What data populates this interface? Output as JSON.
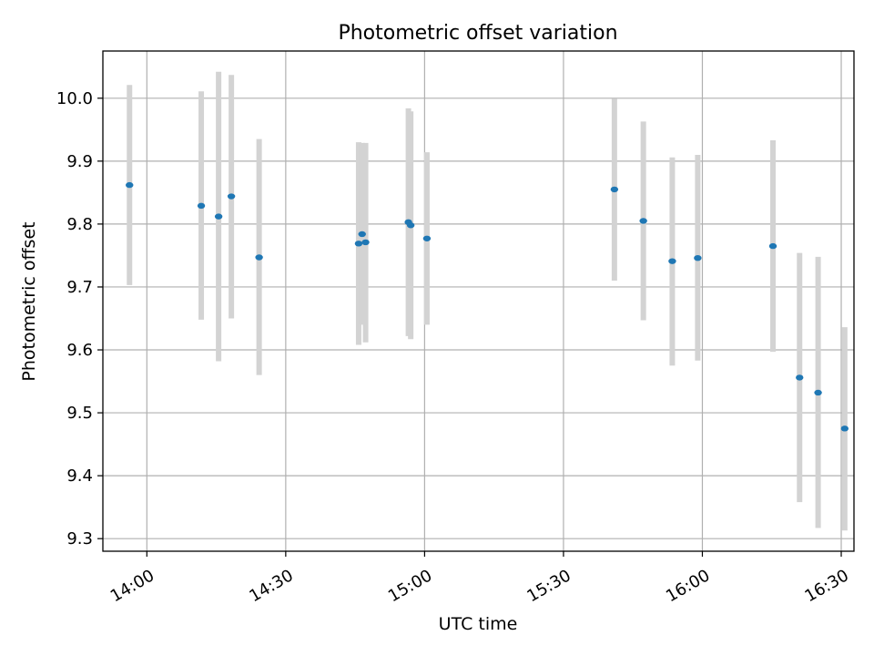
{
  "chart_data": {
    "type": "scatter",
    "title": "Photometric offset variation",
    "xlabel": "UTC time",
    "ylabel": "Photometric offset",
    "x_axis_type": "time",
    "xlim": [
      "13:50:30",
      "16:32:45"
    ],
    "ylim": [
      9.28,
      10.075
    ],
    "x_ticks": [
      "14:00",
      "14:30",
      "15:00",
      "15:30",
      "16:00",
      "16:30"
    ],
    "y_ticks": [
      "9.3",
      "9.4",
      "9.5",
      "9.6",
      "9.7",
      "9.8",
      "9.9",
      "10.0"
    ],
    "grid": true,
    "legend": "none",
    "colors": {
      "point": "#1f77b4",
      "errorbar": "#d3d3d3",
      "grid": "#b0b0b0"
    },
    "series": [
      {
        "points": [
          {
            "x": "13:56:15",
            "y": 9.862,
            "err": [
              9.703,
              10.021
            ]
          },
          {
            "x": "14:11:45",
            "y": 9.829,
            "err": [
              9.648,
              10.011
            ]
          },
          {
            "x": "14:15:30",
            "y": 9.812,
            "err": [
              9.582,
              10.042
            ]
          },
          {
            "x": "14:18:15",
            "y": 9.844,
            "err": [
              9.65,
              10.037
            ]
          },
          {
            "x": "14:24:15",
            "y": 9.747,
            "err": [
              9.56,
              9.935
            ]
          },
          {
            "x": "14:45:45",
            "y": 9.769,
            "err": [
              9.608,
              9.93
            ]
          },
          {
            "x": "14:46:30",
            "y": 9.784,
            "err": [
              9.64,
              9.929
            ]
          },
          {
            "x": "14:47:15",
            "y": 9.771,
            "err": [
              9.612,
              9.929
            ]
          },
          {
            "x": "14:56:30",
            "y": 9.803,
            "err": [
              9.622,
              9.984
            ]
          },
          {
            "x": "14:57:00",
            "y": 9.798,
            "err": [
              9.617,
              9.979
            ]
          },
          {
            "x": "15:00:30",
            "y": 9.777,
            "err": [
              9.64,
              9.914
            ]
          },
          {
            "x": "15:41:00",
            "y": 9.855,
            "err": [
              9.71,
              9.999
            ]
          },
          {
            "x": "15:47:15",
            "y": 9.805,
            "err": [
              9.647,
              9.963
            ]
          },
          {
            "x": "15:53:30",
            "y": 9.741,
            "err": [
              9.575,
              9.906
            ]
          },
          {
            "x": "15:59:00",
            "y": 9.746,
            "err": [
              9.583,
              9.91
            ]
          },
          {
            "x": "16:15:15",
            "y": 9.765,
            "err": [
              9.597,
              9.933
            ]
          },
          {
            "x": "16:21:00",
            "y": 9.556,
            "err": [
              9.358,
              9.754
            ]
          },
          {
            "x": "16:25:00",
            "y": 9.532,
            "err": [
              9.317,
              9.748
            ]
          },
          {
            "x": "16:30:45",
            "y": 9.475,
            "err": [
              9.313,
              9.636
            ]
          }
        ]
      }
    ]
  }
}
